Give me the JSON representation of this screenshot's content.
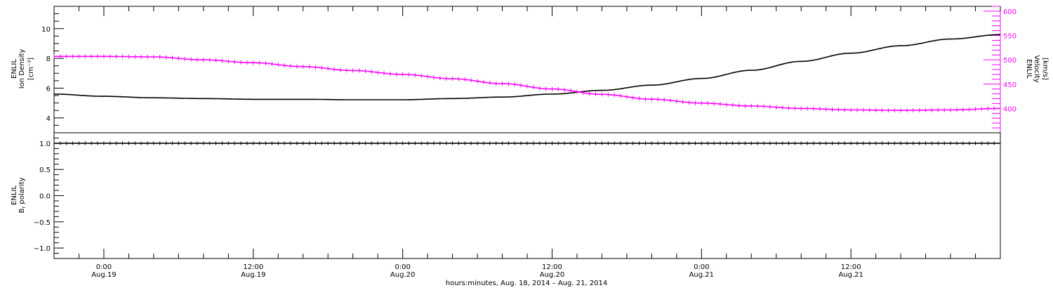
{
  "chart_data": [
    {
      "type": "line",
      "panel": "top",
      "x_unit": "hours since 2014-08-18 00:00",
      "x": [
        20,
        24,
        28,
        32,
        36,
        40,
        44,
        48,
        52,
        56,
        60,
        64,
        68,
        72,
        76,
        80,
        84,
        88,
        92,
        96
      ],
      "left_axis": {
        "ylabel_line1": "ENLIL",
        "ylabel_line2": "Ion Density",
        "ylabel_unit": "[cm⁻³]",
        "ylim": [
          3,
          11.5
        ],
        "major_ticks": [
          4,
          6,
          8,
          10
        ],
        "tick_labels": [
          "4",
          "6",
          "8",
          "10"
        ],
        "color": "#000000"
      },
      "right_axis": {
        "ylabel_line1": "ENLIL",
        "ylabel_line2": "Velocity",
        "ylabel_unit": "[km/s]",
        "ylim": [
          350,
          610
        ],
        "major_ticks": [
          400,
          450,
          500,
          550,
          600
        ],
        "tick_labels": [
          "400",
          "450",
          "500",
          "550",
          "600"
        ],
        "color": "#ff00ff"
      },
      "series": [
        {
          "axis": "left",
          "color": "#000000",
          "values": [
            5.6,
            5.45,
            5.35,
            5.3,
            5.25,
            5.25,
            5.22,
            5.22,
            5.3,
            5.4,
            5.6,
            5.85,
            6.2,
            6.65,
            7.2,
            7.8,
            8.35,
            8.85,
            9.3,
            9.6
          ]
        },
        {
          "axis": "right",
          "color": "#ff00ff",
          "values": [
            507,
            507,
            506,
            500,
            494,
            486,
            478,
            470,
            461,
            451,
            440,
            429,
            419,
            411,
            405,
            400,
            397,
            396,
            397,
            400
          ]
        }
      ]
    },
    {
      "type": "line",
      "panel": "bottom",
      "x_unit": "hours since 2014-08-18 00:00",
      "x": [
        20,
        96
      ],
      "ylabel_line1": "ENLIL",
      "ylabel_line2": "B",
      "ylabel_sub": "r",
      "ylabel_line2_suffix": " polarity",
      "ylim": [
        -1.2,
        1.2
      ],
      "major_ticks": [
        -1.0,
        -0.5,
        0.0,
        0.5,
        1.0
      ],
      "tick_labels": [
        "−1.0",
        "−0.5",
        "0.0",
        "0.5",
        "1.0"
      ],
      "series": [
        {
          "color": "#000000",
          "values": [
            1.0,
            1.0
          ]
        }
      ]
    }
  ],
  "x_axis": {
    "range": [
      20,
      96
    ],
    "major_ticks": [
      24,
      36,
      48,
      60,
      72,
      84
    ],
    "time_labels": [
      "0:00",
      "12:00",
      "0:00",
      "12:00",
      "0:00",
      "12:00"
    ],
    "date_labels": [
      "Aug.19",
      "Aug.19",
      "Aug.20",
      "Aug.20",
      "Aug.21",
      "Aug.21"
    ],
    "title": "hours:minutes, Aug. 18, 2014 – Aug. 21, 2014"
  }
}
